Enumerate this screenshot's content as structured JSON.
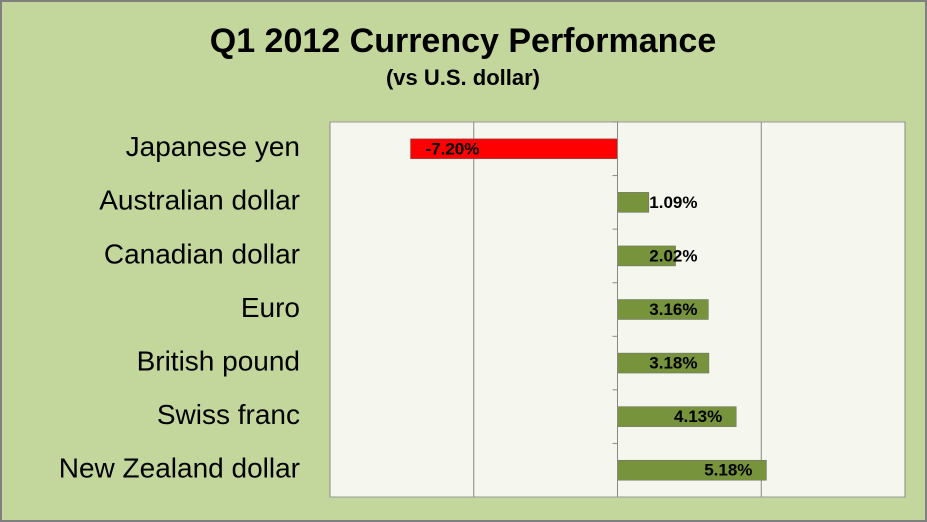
{
  "chart_data": {
    "type": "hbar",
    "title": "Q1 2012 Currency Performance",
    "subtitle": "(vs U.S. dollar)",
    "categories": [
      "Japanese yen",
      "Australian dollar",
      "Canadian dollar",
      "Euro",
      "British pound",
      "Swiss franc",
      "New Zealand dollar"
    ],
    "values": [
      -7.2,
      1.09,
      2.02,
      3.16,
      3.18,
      4.13,
      5.18
    ],
    "value_labels": [
      "-7.20%",
      "1.09%",
      "2.02%",
      "3.16%",
      "3.18%",
      "4.13%",
      "5.18%"
    ],
    "colors": [
      "#ff0000",
      "#77933c",
      "#77933c",
      "#77933c",
      "#77933c",
      "#77933c",
      "#77933c"
    ],
    "xlim": [
      -10,
      10
    ],
    "xticks": [
      -10,
      -5,
      0,
      5,
      10
    ],
    "grid": true
  }
}
